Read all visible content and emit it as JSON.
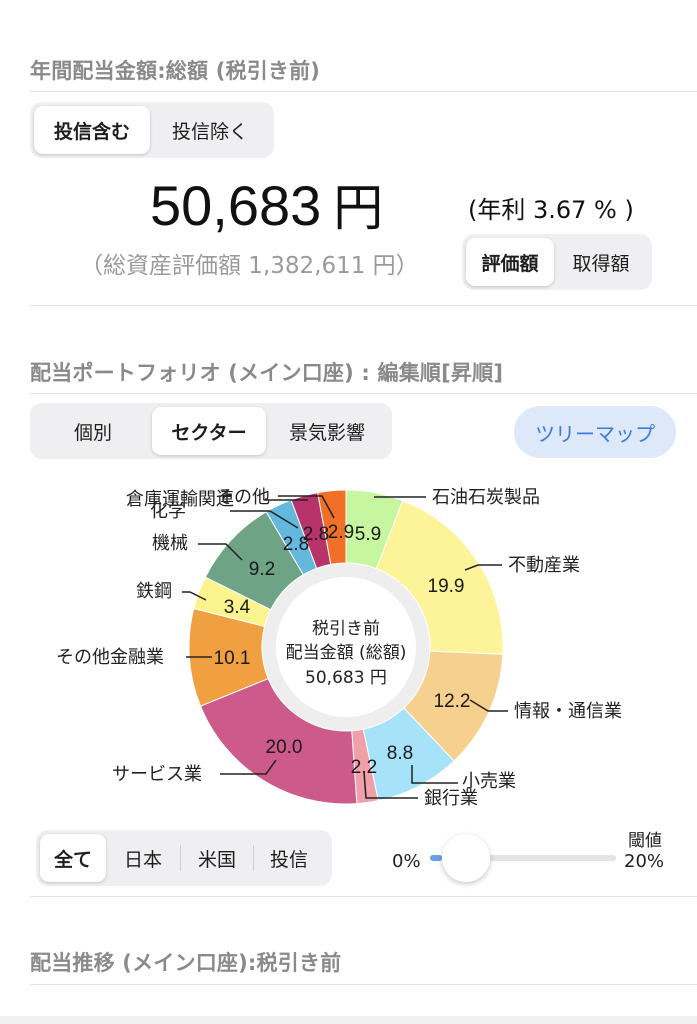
{
  "annual": {
    "title": "年間配当金額:総額 (税引き前)",
    "toggle": [
      "投信含む",
      "投信除く"
    ],
    "amount": "50,683",
    "yen": "円",
    "rate": "(年利 3.67 % )",
    "total_assets": "（総資産評価額 1,382,611 円）",
    "basis_toggle": [
      "評価額",
      "取得額"
    ]
  },
  "portfolio": {
    "title": "配当ポートフォリオ (メイン口座) : 編集順[昇順]",
    "view_tabs": [
      "個別",
      "セクター",
      "景気影響"
    ],
    "treemap_button": "ツリーマップ",
    "center": [
      "税引き前",
      "配当金額 (総額)",
      "50,683 円"
    ],
    "region_tabs": [
      "全て",
      "日本",
      "米国",
      "投信"
    ],
    "threshold_label": "閾値",
    "threshold_min": "0%",
    "threshold_max": "20%",
    "threshold_value": 0.01
  },
  "history": {
    "title": "配当推移 (メイン口座):税引き前"
  },
  "chart_data": {
    "type": "pie",
    "style": "donut",
    "unit": "%",
    "slices": [
      {
        "label": "石油石炭製品",
        "value": 5.9,
        "display": "5.9",
        "color": "#c6f7a0"
      },
      {
        "label": "不動産業",
        "value": 19.9,
        "display": "19.9",
        "color": "#fdf49a"
      },
      {
        "label": "情報・通信業",
        "value": 12.2,
        "display": "12.2",
        "color": "#f6d08e"
      },
      {
        "label": "小売業",
        "value": 8.8,
        "display": "8.8",
        "color": "#a6e2f8"
      },
      {
        "label": "銀行業",
        "value": 2.2,
        "display": "2.2",
        "color": "#f0a0a8"
      },
      {
        "label": "サービス業",
        "value": 20.0,
        "display": "20.0",
        "color": "#cc5a8a"
      },
      {
        "label": "その他金融業",
        "value": 10.1,
        "display": "10.1",
        "color": "#f0a040"
      },
      {
        "label": "鉄鋼",
        "value": 3.4,
        "display": "3.4",
        "color": "#fbf48e"
      },
      {
        "label": "機械",
        "value": 9.2,
        "display": "9.2",
        "color": "#6fa386"
      },
      {
        "label": "化学",
        "value": 2.8,
        "display": "2.8",
        "color": "#62b8dd"
      },
      {
        "label": "倉庫運輸関連",
        "value": 2.8,
        "display": "2.8",
        "color": "#b8336a"
      },
      {
        "label": "その他",
        "value": 2.9,
        "display": "2.9",
        "color": "#ef7026"
      }
    ]
  }
}
